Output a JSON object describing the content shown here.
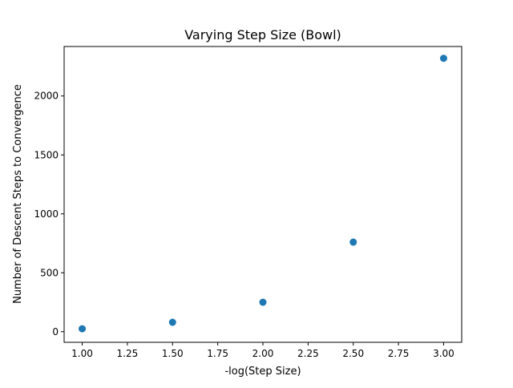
{
  "chart_data": {
    "type": "scatter",
    "title": "Varying Step Size (Bowl)",
    "xlabel": "-log(Step Size)",
    "ylabel": "Number of Descent Steps to Convergence",
    "x": [
      1.0,
      1.5,
      2.0,
      2.5,
      3.0
    ],
    "y": [
      25,
      80,
      250,
      760,
      2320
    ],
    "xlim": [
      0.9,
      3.1
    ],
    "ylim": [
      -90,
      2420
    ],
    "xticks": [
      "1.00",
      "1.25",
      "1.50",
      "1.75",
      "2.00",
      "2.25",
      "2.50",
      "2.75",
      "3.00"
    ],
    "xtick_values": [
      1.0,
      1.25,
      1.5,
      1.75,
      2.0,
      2.25,
      2.5,
      2.75,
      3.0
    ],
    "yticks": [
      "0",
      "500",
      "1000",
      "1500",
      "2000"
    ],
    "ytick_values": [
      0,
      500,
      1000,
      1500,
      2000
    ],
    "grid": false,
    "colors": {
      "marker": "#1f77b4",
      "axes": "#000000",
      "background": "#ffffff"
    }
  }
}
